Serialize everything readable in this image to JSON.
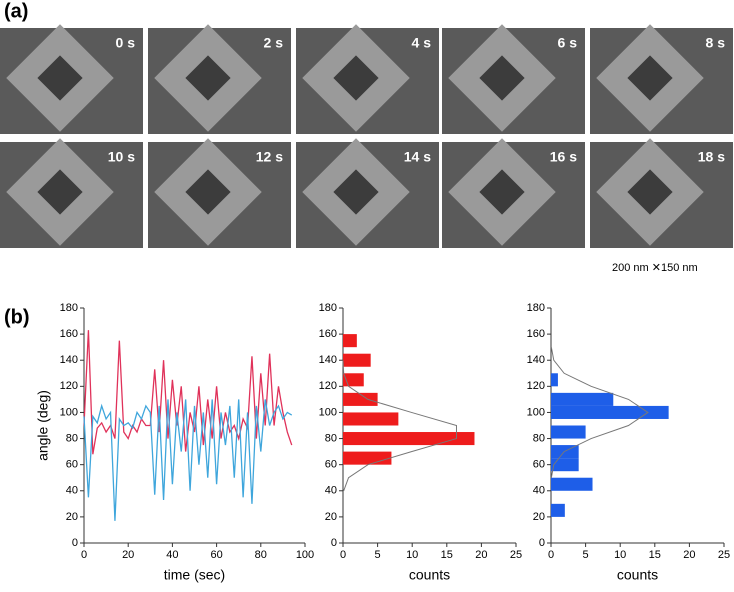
{
  "panel_a": {
    "label": "(a)",
    "frames": [
      "0 s",
      "2 s",
      "4 s",
      "6 s",
      "8 s",
      "10 s",
      "12 s",
      "14 s",
      "16 s",
      "18 s"
    ],
    "scale": "200 nm ✕150 nm"
  },
  "panel_b_label": "(b)",
  "chart_data": [
    {
      "type": "line",
      "xlabel": "time (sec)",
      "ylabel": "angle (deg)",
      "x": [
        0,
        2,
        4,
        6,
        8,
        10,
        12,
        14,
        16,
        18,
        20,
        22,
        24,
        26,
        28,
        30,
        32,
        34,
        36,
        38,
        40,
        42,
        44,
        46,
        48,
        50,
        52,
        54,
        56,
        58,
        60,
        62,
        64,
        66,
        68,
        70,
        72,
        74,
        76,
        78,
        80,
        82,
        84,
        86,
        88,
        90,
        92,
        94
      ],
      "series": [
        {
          "color": "#e0325a",
          "values": [
            90,
            163,
            68,
            88,
            92,
            85,
            90,
            80,
            155,
            85,
            80,
            90,
            85,
            95,
            90,
            90,
            133,
            85,
            140,
            80,
            125,
            90,
            120,
            70,
            100,
            85,
            120,
            75,
            110,
            80,
            120,
            80,
            100,
            85,
            90,
            80,
            95,
            88,
            143,
            80,
            130,
            90,
            145,
            90,
            120,
            100,
            85,
            75
          ]
        },
        {
          "color": "#3fa6dc",
          "values": [
            97,
            35,
            97,
            92,
            105,
            95,
            100,
            17,
            95,
            90,
            92,
            88,
            100,
            95,
            105,
            100,
            37,
            105,
            33,
            110,
            45,
            100,
            70,
            110,
            40,
            105,
            60,
            100,
            50,
            110,
            45,
            100,
            75,
            105,
            50,
            110,
            35,
            100,
            30,
            105,
            70,
            110,
            90,
            100,
            105,
            95,
            100,
            98
          ]
        }
      ],
      "xlim": [
        0,
        100
      ],
      "xticks": [
        0,
        20,
        40,
        60,
        80,
        100
      ],
      "ylim": [
        0,
        180
      ],
      "yticks": [
        0,
        20,
        40,
        60,
        80,
        100,
        120,
        140,
        160,
        180
      ]
    },
    {
      "type": "hbar",
      "xlabel": "counts",
      "color": "#ee1c1c",
      "y": [
        155,
        140,
        125,
        110,
        95,
        80,
        65
      ],
      "values": [
        2,
        4,
        3,
        5,
        8,
        19,
        7
      ],
      "fit": {
        "y": [
          40,
          50,
          60,
          70,
          80,
          90,
          100,
          110,
          120,
          130,
          140
        ],
        "values": [
          0.1,
          0.8,
          3.6,
          9.9,
          16.4,
          16.4,
          9.9,
          3.6,
          0.8,
          0.1,
          0
        ]
      },
      "xlim": [
        0,
        25
      ],
      "xticks": [
        0,
        5,
        10,
        15,
        20,
        25
      ],
      "ylim": [
        0,
        180
      ],
      "yticks": [
        0,
        20,
        40,
        60,
        80,
        100,
        120,
        140,
        160,
        180
      ]
    },
    {
      "type": "hbar",
      "xlabel": "counts",
      "color": "#1e5ee8",
      "y": [
        125,
        110,
        100,
        85,
        70,
        60,
        45,
        25
      ],
      "values": [
        1,
        9,
        17,
        5,
        4,
        4,
        6,
        2
      ],
      "fit": {
        "y": [
          50,
          60,
          70,
          80,
          90,
          100,
          110,
          120,
          130,
          140,
          150
        ],
        "values": [
          0.05,
          0.4,
          1.9,
          5.8,
          11.2,
          14,
          11.2,
          5.8,
          1.9,
          0.4,
          0.05
        ]
      },
      "xlim": [
        0,
        25
      ],
      "xticks": [
        0,
        5,
        10,
        15,
        20,
        25
      ],
      "ylim": [
        0,
        180
      ],
      "yticks": [
        0,
        20,
        40,
        60,
        80,
        100,
        120,
        140,
        160,
        180
      ]
    }
  ]
}
